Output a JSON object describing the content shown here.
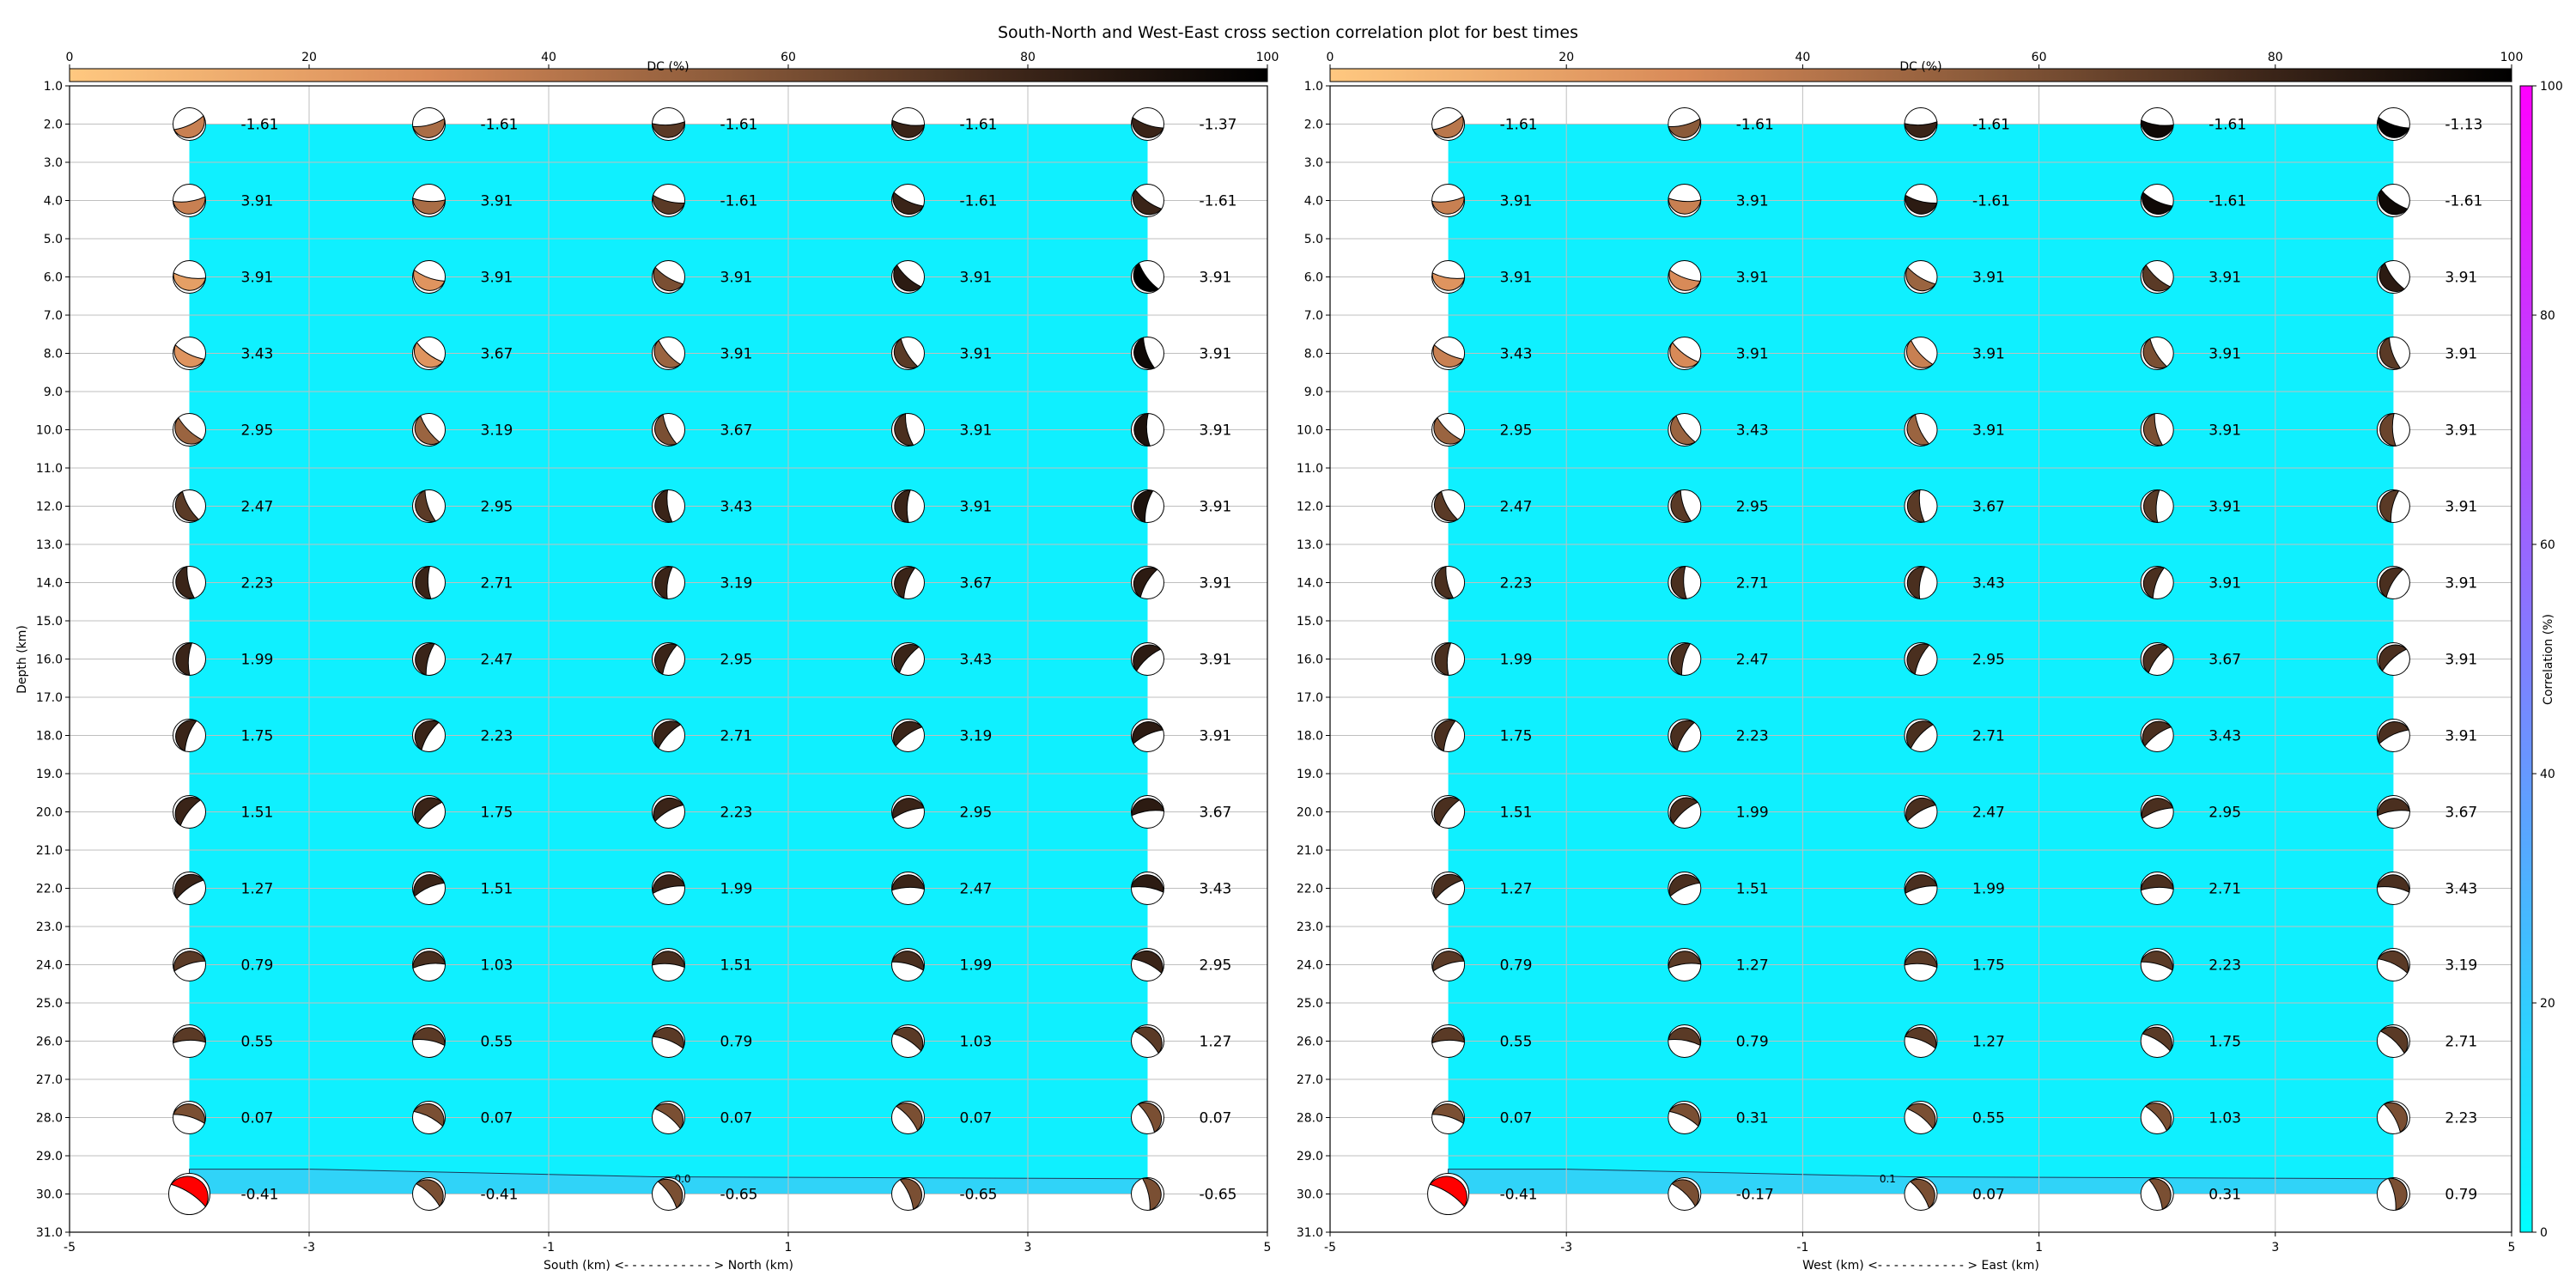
{
  "title": "South-North and West-East cross section correlation plot for best times",
  "dc_colorbar": {
    "label": "DC (%)",
    "ticks": [
      "0",
      "20",
      "40",
      "60",
      "80",
      "100"
    ]
  },
  "corr_colorbar": {
    "label": "Correlation (%)",
    "ticks": [
      "0",
      "20",
      "40",
      "60",
      "80",
      "100"
    ]
  },
  "colors": {
    "background_fill": "#0ff0ff",
    "contour_fill": "#30d3f8",
    "best_solution": "#ff0000",
    "grid": "#bfbfbf"
  },
  "chart_data": [
    {
      "type": "heatmap",
      "name": "south-north",
      "xlabel": "South (km) <- - - - - - - - - - - > North (km)",
      "ylabel": "Depth (km)",
      "xlim": [
        -5,
        5
      ],
      "ylim": [
        31,
        1
      ],
      "xticks": [
        "-5",
        "-3",
        "-1",
        "1",
        "3",
        "5"
      ],
      "yticks": [
        "1.0",
        "2.0",
        "3.0",
        "4.0",
        "5.0",
        "6.0",
        "7.0",
        "8.0",
        "9.0",
        "10.0",
        "11.0",
        "12.0",
        "13.0",
        "14.0",
        "15.0",
        "16.0",
        "17.0",
        "18.0",
        "19.0",
        "20.0",
        "21.0",
        "22.0",
        "23.0",
        "24.0",
        "25.0",
        "26.0",
        "27.0",
        "28.0",
        "29.0",
        "30.0",
        "31.0"
      ],
      "grid": true,
      "x": [
        -4,
        -2,
        0,
        2,
        4
      ],
      "depth": [
        2,
        4,
        6,
        8,
        10,
        12,
        14,
        16,
        18,
        20,
        22,
        24,
        26,
        28,
        30
      ],
      "times": [
        [
          "-1.61",
          "-1.61",
          "-1.61",
          "-1.61",
          "-1.37"
        ],
        [
          "3.91",
          "3.91",
          "-1.61",
          "-1.61",
          "-1.61"
        ],
        [
          "3.91",
          "3.91",
          "3.91",
          "3.91",
          "3.91"
        ],
        [
          "3.43",
          "3.67",
          "3.91",
          "3.91",
          "3.91"
        ],
        [
          "2.95",
          "3.19",
          "3.67",
          "3.91",
          "3.91"
        ],
        [
          "2.47",
          "2.95",
          "3.43",
          "3.91",
          "3.91"
        ],
        [
          "2.23",
          "2.71",
          "3.19",
          "3.67",
          "3.91"
        ],
        [
          "1.99",
          "2.47",
          "2.95",
          "3.43",
          "3.91"
        ],
        [
          "1.75",
          "2.23",
          "2.71",
          "3.19",
          "3.91"
        ],
        [
          "1.51",
          "1.75",
          "2.23",
          "2.95",
          "3.67"
        ],
        [
          "1.27",
          "1.51",
          "1.99",
          "2.47",
          "3.43"
        ],
        [
          "0.79",
          "1.03",
          "1.51",
          "1.99",
          "2.95"
        ],
        [
          "0.55",
          "0.55",
          "0.79",
          "1.03",
          "1.27"
        ],
        [
          "0.07",
          "0.07",
          "0.07",
          "0.07",
          "0.07"
        ],
        [
          "-0.41",
          "-0.41",
          "-0.65",
          "-0.65",
          "-0.65"
        ]
      ],
      "dc": [
        [
          35,
          45,
          70,
          80,
          80
        ],
        [
          35,
          45,
          70,
          80,
          80
        ],
        [
          20,
          25,
          60,
          85,
          100
        ],
        [
          25,
          25,
          50,
          70,
          95
        ],
        [
          50,
          50,
          60,
          75,
          90
        ],
        [
          70,
          70,
          80,
          80,
          90
        ],
        [
          80,
          80,
          80,
          80,
          85
        ],
        [
          80,
          80,
          80,
          80,
          85
        ],
        [
          80,
          80,
          80,
          80,
          85
        ],
        [
          80,
          80,
          80,
          80,
          85
        ],
        [
          80,
          80,
          80,
          80,
          85
        ],
        [
          70,
          75,
          75,
          75,
          80
        ],
        [
          70,
          70,
          70,
          70,
          70
        ],
        [
          60,
          60,
          60,
          60,
          60
        ],
        [
          0,
          60,
          60,
          60,
          60
        ]
      ],
      "best": [
        14,
        0
      ],
      "contour_label": "0.0"
    },
    {
      "type": "heatmap",
      "name": "west-east",
      "xlabel": "West (km) <- - - - - - - - - - - > East (km)",
      "ylabel": "",
      "xlim": [
        -5,
        5
      ],
      "ylim": [
        31,
        1
      ],
      "xticks": [
        "-5",
        "-3",
        "-1",
        "1",
        "3",
        "5"
      ],
      "yticks": [
        "1.0",
        "2.0",
        "3.0",
        "4.0",
        "5.0",
        "6.0",
        "7.0",
        "8.0",
        "9.0",
        "10.0",
        "11.0",
        "12.0",
        "13.0",
        "14.0",
        "15.0",
        "16.0",
        "17.0",
        "18.0",
        "19.0",
        "20.0",
        "21.0",
        "22.0",
        "23.0",
        "24.0",
        "25.0",
        "26.0",
        "27.0",
        "28.0",
        "29.0",
        "30.0",
        "31.0"
      ],
      "grid": true,
      "x": [
        -4,
        -2,
        0,
        2,
        4
      ],
      "depth": [
        2,
        4,
        6,
        8,
        10,
        12,
        14,
        16,
        18,
        20,
        22,
        24,
        26,
        28,
        30
      ],
      "times": [
        [
          "-1.61",
          "-1.61",
          "-1.61",
          "-1.61",
          "-1.13"
        ],
        [
          "3.91",
          "3.91",
          "-1.61",
          "-1.61",
          "-1.61"
        ],
        [
          "3.91",
          "3.91",
          "3.91",
          "3.91",
          "3.91"
        ],
        [
          "3.43",
          "3.91",
          "3.91",
          "3.91",
          "3.91"
        ],
        [
          "2.95",
          "3.43",
          "3.91",
          "3.91",
          "3.91"
        ],
        [
          "2.47",
          "2.95",
          "3.67",
          "3.91",
          "3.91"
        ],
        [
          "2.23",
          "2.71",
          "3.43",
          "3.91",
          "3.91"
        ],
        [
          "1.99",
          "2.47",
          "2.95",
          "3.67",
          "3.91"
        ],
        [
          "1.75",
          "2.23",
          "2.71",
          "3.43",
          "3.91"
        ],
        [
          "1.51",
          "1.99",
          "2.47",
          "2.95",
          "3.67"
        ],
        [
          "1.27",
          "1.51",
          "1.99",
          "2.71",
          "3.43"
        ],
        [
          "0.79",
          "1.27",
          "1.75",
          "2.23",
          "3.19"
        ],
        [
          "0.55",
          "0.79",
          "1.27",
          "1.75",
          "2.71"
        ],
        [
          "0.07",
          "0.31",
          "0.55",
          "1.03",
          "2.23"
        ],
        [
          "-0.41",
          "-0.17",
          "0.07",
          "0.31",
          "0.79"
        ]
      ],
      "dc": [
        [
          40,
          55,
          80,
          95,
          100
        ],
        [
          35,
          35,
          85,
          95,
          95
        ],
        [
          25,
          30,
          50,
          70,
          85
        ],
        [
          35,
          30,
          35,
          60,
          70
        ],
        [
          50,
          50,
          50,
          60,
          65
        ],
        [
          70,
          70,
          70,
          70,
          70
        ],
        [
          75,
          75,
          75,
          75,
          75
        ],
        [
          75,
          75,
          75,
          75,
          75
        ],
        [
          75,
          75,
          75,
          75,
          75
        ],
        [
          75,
          75,
          75,
          75,
          75
        ],
        [
          75,
          75,
          75,
          75,
          75
        ],
        [
          70,
          70,
          70,
          70,
          70
        ],
        [
          70,
          70,
          70,
          70,
          70
        ],
        [
          60,
          60,
          60,
          60,
          60
        ],
        [
          0,
          60,
          60,
          60,
          60
        ]
      ],
      "best": [
        14,
        0
      ],
      "contour_label": "0.1"
    }
  ]
}
